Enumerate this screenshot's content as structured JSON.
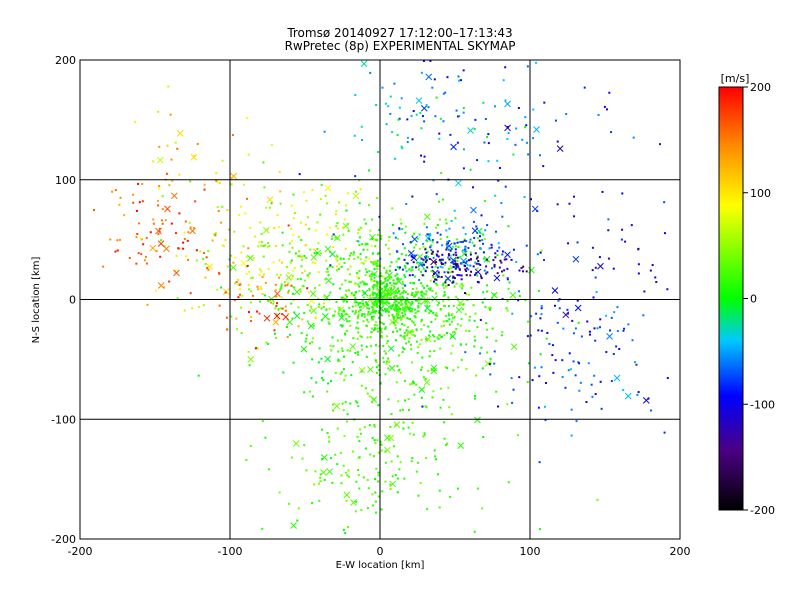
{
  "header": {
    "title": "Tromsø 20140927 17:12:00–17:13:43",
    "subtitle": "RwPretec (8p) EXPERIMENTAL SKYMAP"
  },
  "colorbar": {
    "unit_label": "[m/s]",
    "min": -200,
    "max": 200,
    "ticks": [
      200,
      100,
      0,
      -100,
      -200
    ],
    "colormap": [
      "#000000",
      "#4b0082",
      "#0000ff",
      "#00c8ff",
      "#00ff00",
      "#ffff00",
      "#ff8c00",
      "#ff0000"
    ]
  },
  "chart_data": {
    "type": "scatter",
    "title": "Tromsø 20140927 17:12:00–17:13:43",
    "subtitle": "RwPretec (8p) EXPERIMENTAL SKYMAP",
    "xlabel": "E-W location [km]",
    "ylabel": "N-S location [km]",
    "xlim": [
      -200,
      200
    ],
    "ylim": [
      -200,
      200
    ],
    "xticks": [
      -200,
      -100,
      0,
      100,
      200
    ],
    "yticks": [
      -200,
      -100,
      0,
      100,
      200
    ],
    "grid": true,
    "color_variable": "velocity [m/s]",
    "markers": [
      "+",
      "x"
    ],
    "point_groups": [
      {
        "center": [
          8,
          -5
        ],
        "spread": [
          38,
          38
        ],
        "count": 900,
        "velocity": [
          -10,
          50
        ]
      },
      {
        "center": [
          5,
          0
        ],
        "spread": [
          12,
          10
        ],
        "count": 260,
        "velocity": [
          -5,
          35
        ]
      },
      {
        "center": [
          -60,
          40
        ],
        "spread": [
          35,
          30
        ],
        "count": 220,
        "velocity": [
          20,
          110
        ]
      },
      {
        "center": [
          -150,
          55
        ],
        "spread": [
          25,
          20
        ],
        "count": 90,
        "velocity": [
          130,
          200
        ]
      },
      {
        "center": [
          -80,
          0
        ],
        "spread": [
          20,
          18
        ],
        "count": 60,
        "velocity": [
          110,
          200
        ]
      },
      {
        "center": [
          55,
          30
        ],
        "spread": [
          18,
          8
        ],
        "count": 140,
        "velocity": [
          -170,
          -90
        ]
      },
      {
        "center": [
          45,
          40
        ],
        "spread": [
          25,
          12
        ],
        "count": 120,
        "velocity": [
          -90,
          -40
        ]
      },
      {
        "center": [
          75,
          140
        ],
        "spread": [
          45,
          40
        ],
        "count": 110,
        "velocity": [
          -120,
          -30
        ]
      },
      {
        "center": [
          120,
          -40
        ],
        "spread": [
          40,
          35
        ],
        "count": 120,
        "velocity": [
          -110,
          -40
        ]
      },
      {
        "center": [
          -5,
          -140
        ],
        "spread": [
          35,
          30
        ],
        "count": 180,
        "velocity": [
          0,
          45
        ]
      },
      {
        "center": [
          -120,
          120
        ],
        "spread": [
          30,
          25
        ],
        "count": 35,
        "velocity": [
          60,
          160
        ]
      },
      {
        "center": [
          150,
          30
        ],
        "spread": [
          30,
          40
        ],
        "count": 40,
        "velocity": [
          -130,
          -60
        ]
      },
      {
        "center": [
          20,
          150
        ],
        "spread": [
          30,
          25
        ],
        "count": 50,
        "velocity": [
          -60,
          0
        ]
      }
    ]
  }
}
